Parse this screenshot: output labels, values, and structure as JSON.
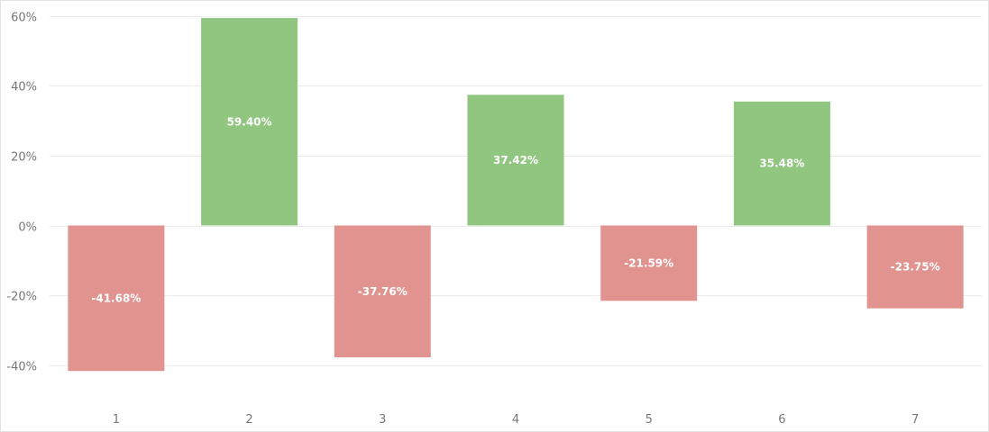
{
  "chart_data": {
    "type": "bar",
    "title": "",
    "xlabel": "",
    "ylabel": "",
    "categories": [
      "1",
      "2",
      "3",
      "4",
      "5",
      "6",
      "7"
    ],
    "values": [
      -41.68,
      59.4,
      -37.76,
      37.42,
      -21.59,
      35.48,
      -23.75
    ],
    "data_labels": [
      "-41.68%",
      "59.40%",
      "-37.76%",
      "37.42%",
      "-21.59%",
      "35.48%",
      "-23.75%"
    ],
    "ylim": [
      -50,
      60
    ],
    "y_ticks": [
      60,
      40,
      20,
      0,
      -20,
      -40
    ],
    "y_tick_labels": [
      "60%",
      "40%",
      "20%",
      "0%",
      "-20%",
      "-40%"
    ],
    "grid": true,
    "legend": false,
    "colors": {
      "positive": "#90c67f",
      "negative": "#e1938f",
      "grid": "#ebebeb",
      "tick_text": "#777777",
      "label_text": "#ffffff"
    }
  }
}
